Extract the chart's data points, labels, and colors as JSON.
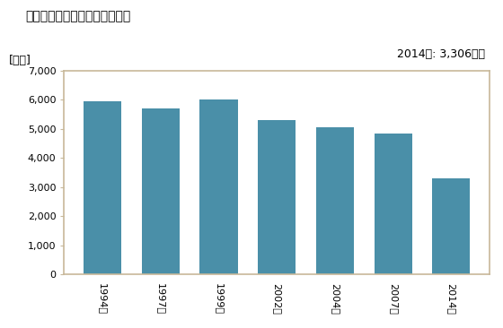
{
  "title": "その他の小売業の店舗数の推移",
  "ylabel": "[店舗]",
  "annotation": "2014年: 3,306店舗",
  "categories": [
    "1994年",
    "1997年",
    "1999年",
    "2002年",
    "2004年",
    "2007年",
    "2014年"
  ],
  "values": [
    5950,
    5700,
    6000,
    5300,
    5050,
    4850,
    3306
  ],
  "bar_color": "#4a8fa8",
  "ylim": [
    0,
    7000
  ],
  "yticks": [
    0,
    1000,
    2000,
    3000,
    4000,
    5000,
    6000,
    7000
  ],
  "background_color": "#ffffff",
  "plot_background": "#ffffff",
  "border_color": "#c8b89a",
  "title_fontsize": 10,
  "annotation_fontsize": 9,
  "tick_fontsize": 8,
  "ylabel_fontsize": 9
}
